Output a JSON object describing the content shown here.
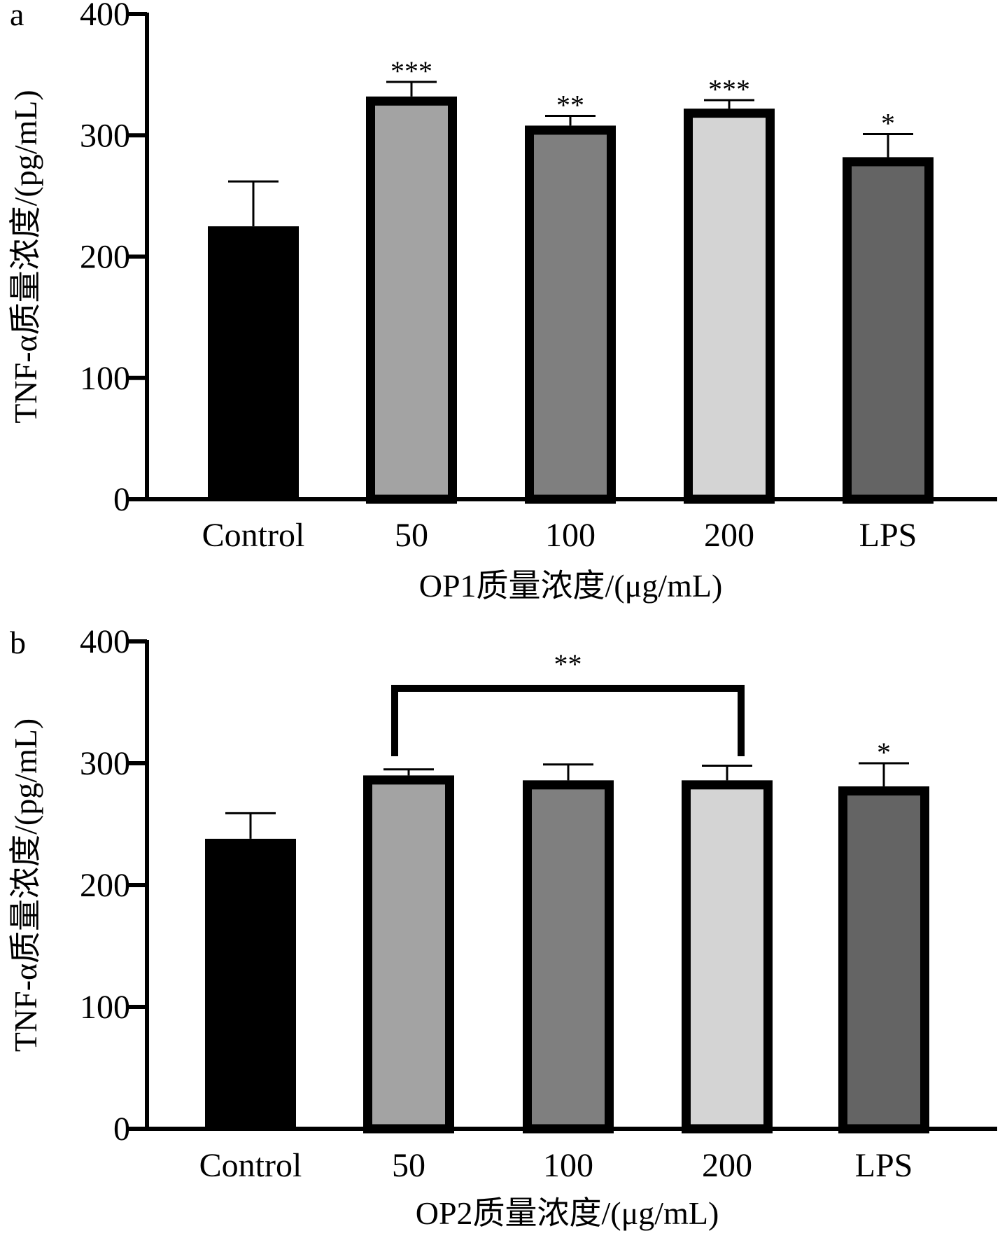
{
  "chart_data": [
    {
      "panel": "a",
      "type": "bar",
      "categories": [
        "Control",
        "50",
        "100",
        "200",
        "LPS"
      ],
      "values": [
        225,
        332,
        308,
        322,
        282
      ],
      "errors": [
        37,
        12,
        8,
        7,
        19
      ],
      "colors": [
        "#000000",
        "#a3a3a3",
        "#7f7f7f",
        "#d4d4d4",
        "#646464"
      ],
      "significance": [
        "",
        "***",
        "**",
        "***",
        "*"
      ],
      "ylabel": "TNF-α质量浓度/(pg/mL)",
      "xlabel": "OP1质量浓度/(μg/mL)",
      "ylim": [
        0,
        400
      ],
      "yticks": [
        0,
        100,
        200,
        300,
        400
      ]
    },
    {
      "panel": "b",
      "type": "bar",
      "categories": [
        "Control",
        "50",
        "100",
        "200",
        "LPS"
      ],
      "values": [
        238,
        290,
        286,
        286,
        281
      ],
      "errors": [
        21,
        5,
        13,
        12,
        19
      ],
      "colors": [
        "#000000",
        "#a3a3a3",
        "#7f7f7f",
        "#d4d4d4",
        "#646464"
      ],
      "significance": [
        "",
        "",
        "",
        "",
        "*"
      ],
      "bracket": {
        "from": 1,
        "to": 3,
        "label": "**"
      },
      "ylabel": "TNF-α质量浓度/(pg/mL)",
      "xlabel": "OP2质量浓度/(μg/mL)",
      "ylim": [
        0,
        400
      ],
      "yticks": [
        0,
        100,
        200,
        300,
        400
      ]
    }
  ]
}
